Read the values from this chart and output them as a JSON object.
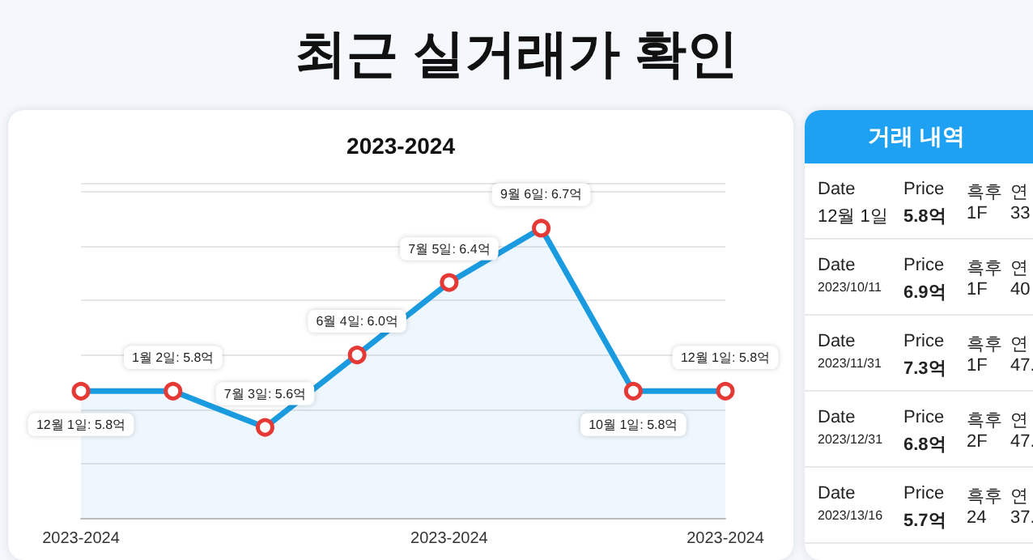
{
  "chart_data": [
    {
      "type": "area",
      "title": "최근 실거래가 확인",
      "subtitle": "2023-2024",
      "categories": [
        "2023-2024",
        null,
        null,
        null,
        "2023-2024",
        null,
        null,
        "2023-2024"
      ],
      "series": [
        {
          "color": "#1a9be0",
          "values": [
            5.8,
            5.8,
            5.6,
            6.0,
            6.4,
            6.7,
            5.8,
            5.8
          ],
          "value_labels": [
            "12월 1일: 5.8억",
            "1월 2일: 5.8억",
            "7월 3일: 5.6억",
            "6월 4일: 6.0억",
            "7월 5일: 6.4억",
            "9월 6일: 6.7억",
            "10월 1일: 5.8억",
            "12월 1일: 5.8억"
          ]
        }
      ],
      "marker": "circle",
      "grid": "y"
    },
    {
      "type": "other",
      "title": "거래 내역",
      "annotations": [
        "Date",
        "Price",
        "흑후",
        "연",
        "12월 1일",
        "5.8억",
        "1F",
        "33",
        "Date",
        "Price",
        "흑후",
        "연",
        "2023/10/11",
        "6.9억",
        "1F",
        "40",
        "Date",
        "Price",
        "흑후",
        "연",
        "2023/11/31",
        "7.3억",
        "1F",
        "47.",
        "Date",
        "Price",
        "흑후",
        "연",
        "2023/12/31",
        "6.8억",
        "2F",
        "47.",
        "Date",
        "Price",
        "흑후",
        "연",
        "2023/13/16",
        "5.7억",
        "24",
        "37."
      ]
    }
  ]
}
